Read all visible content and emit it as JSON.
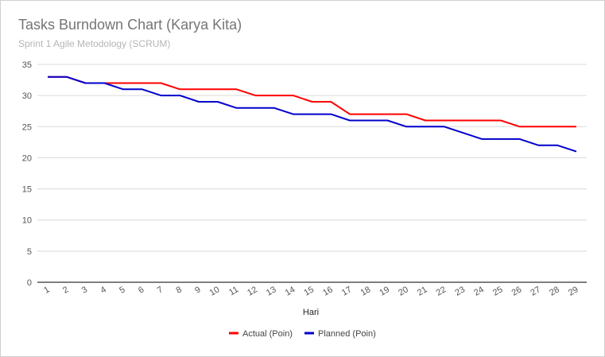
{
  "chart_data": {
    "type": "line",
    "title": "Tasks Burndown Chart (Karya Kita)",
    "subtitle": "Sprint 1 Agile Metodology (SCRUM)",
    "xlabel": "Hari",
    "ylabel": "",
    "ylim": [
      0,
      35
    ],
    "yticks": [
      0,
      5,
      10,
      15,
      20,
      25,
      30,
      35
    ],
    "grid": true,
    "legend_position": "bottom",
    "x": [
      1,
      2,
      3,
      4,
      5,
      6,
      7,
      8,
      9,
      10,
      11,
      12,
      13,
      14,
      15,
      16,
      17,
      18,
      19,
      20,
      21,
      22,
      23,
      24,
      25,
      26,
      27,
      28,
      29
    ],
    "series": [
      {
        "name": "Actual (Poin)",
        "color": "#ff0000",
        "values": [
          33,
          33,
          32,
          32,
          32,
          32,
          32,
          31,
          31,
          31,
          31,
          30,
          30,
          30,
          29,
          29,
          27,
          27,
          27,
          27,
          26,
          26,
          26,
          26,
          26,
          25,
          25,
          25,
          25
        ]
      },
      {
        "name": "Planned (Poin)",
        "color": "#0000cc",
        "values": [
          33,
          33,
          32,
          32,
          31,
          31,
          30,
          30,
          29,
          29,
          28,
          28,
          28,
          27,
          27,
          27,
          26,
          26,
          26,
          25,
          25,
          25,
          24,
          23,
          23,
          23,
          22,
          22,
          21
        ]
      }
    ]
  }
}
